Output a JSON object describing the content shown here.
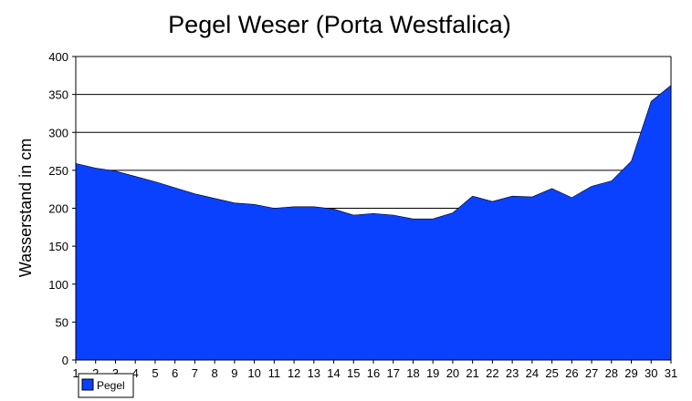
{
  "chart_data": {
    "type": "area",
    "title": "Pegel Weser (Porta Westfalica)",
    "xlabel": "",
    "ylabel": "Wasserstand in cm",
    "categories": [
      "1",
      "2",
      "3",
      "4",
      "5",
      "6",
      "7",
      "8",
      "9",
      "10",
      "11",
      "12",
      "13",
      "14",
      "15",
      "16",
      "17",
      "18",
      "19",
      "20",
      "21",
      "22",
      "23",
      "24",
      "25",
      "26",
      "27",
      "28",
      "29",
      "30",
      "31"
    ],
    "series": [
      {
        "name": "Pegel",
        "color": "#0a41ff",
        "values": [
          259,
          253,
          249,
          242,
          235,
          227,
          219,
          213,
          207,
          205,
          200,
          202,
          202,
          199,
          191,
          193,
          191,
          186,
          186,
          194,
          216,
          209,
          216,
          215,
          226,
          214,
          229,
          236,
          262,
          341,
          362
        ]
      }
    ],
    "ylim": [
      0,
      400
    ],
    "yticks": [
      0,
      50,
      100,
      150,
      200,
      250,
      300,
      350,
      400
    ],
    "grid": true,
    "legend": "bottom-left"
  }
}
